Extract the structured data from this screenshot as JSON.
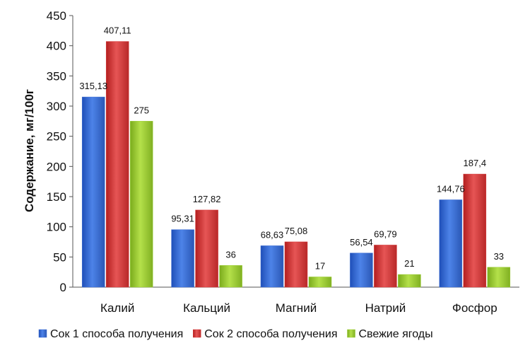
{
  "chart_data": {
    "type": "bar",
    "title": "",
    "xlabel": "",
    "ylabel": "Содержание, мг/100г",
    "ylim": [
      0,
      450
    ],
    "yticks": [
      "0",
      "50",
      "100",
      "150",
      "200",
      "250",
      "300",
      "350",
      "400",
      "450"
    ],
    "grid": false,
    "legend_position": "bottom",
    "categories": [
      "Калий",
      "Кальций",
      "Магний",
      "Натрий",
      "Фосфор"
    ],
    "series": [
      {
        "name": "Сок 1 способа получения",
        "color": "#3f6fd4",
        "values": [
          315.13,
          95.31,
          68.63,
          56.54,
          144.76
        ],
        "labels": [
          "315,13",
          "95,31",
          "68,63",
          "56,54",
          "144,76"
        ]
      },
      {
        "name": "Сок 2 способа получения",
        "color": "#d63a3a",
        "values": [
          407.11,
          127.82,
          75.08,
          69.79,
          187.4
        ],
        "labels": [
          "407,11",
          "127,82",
          "75,08",
          "69,79",
          "187,4"
        ]
      },
      {
        "name": "Свежие ягоды",
        "color": "#9acd32",
        "values": [
          275,
          36,
          17,
          21,
          33
        ],
        "labels": [
          "275",
          "36",
          "17",
          "21",
          "33"
        ]
      }
    ]
  }
}
